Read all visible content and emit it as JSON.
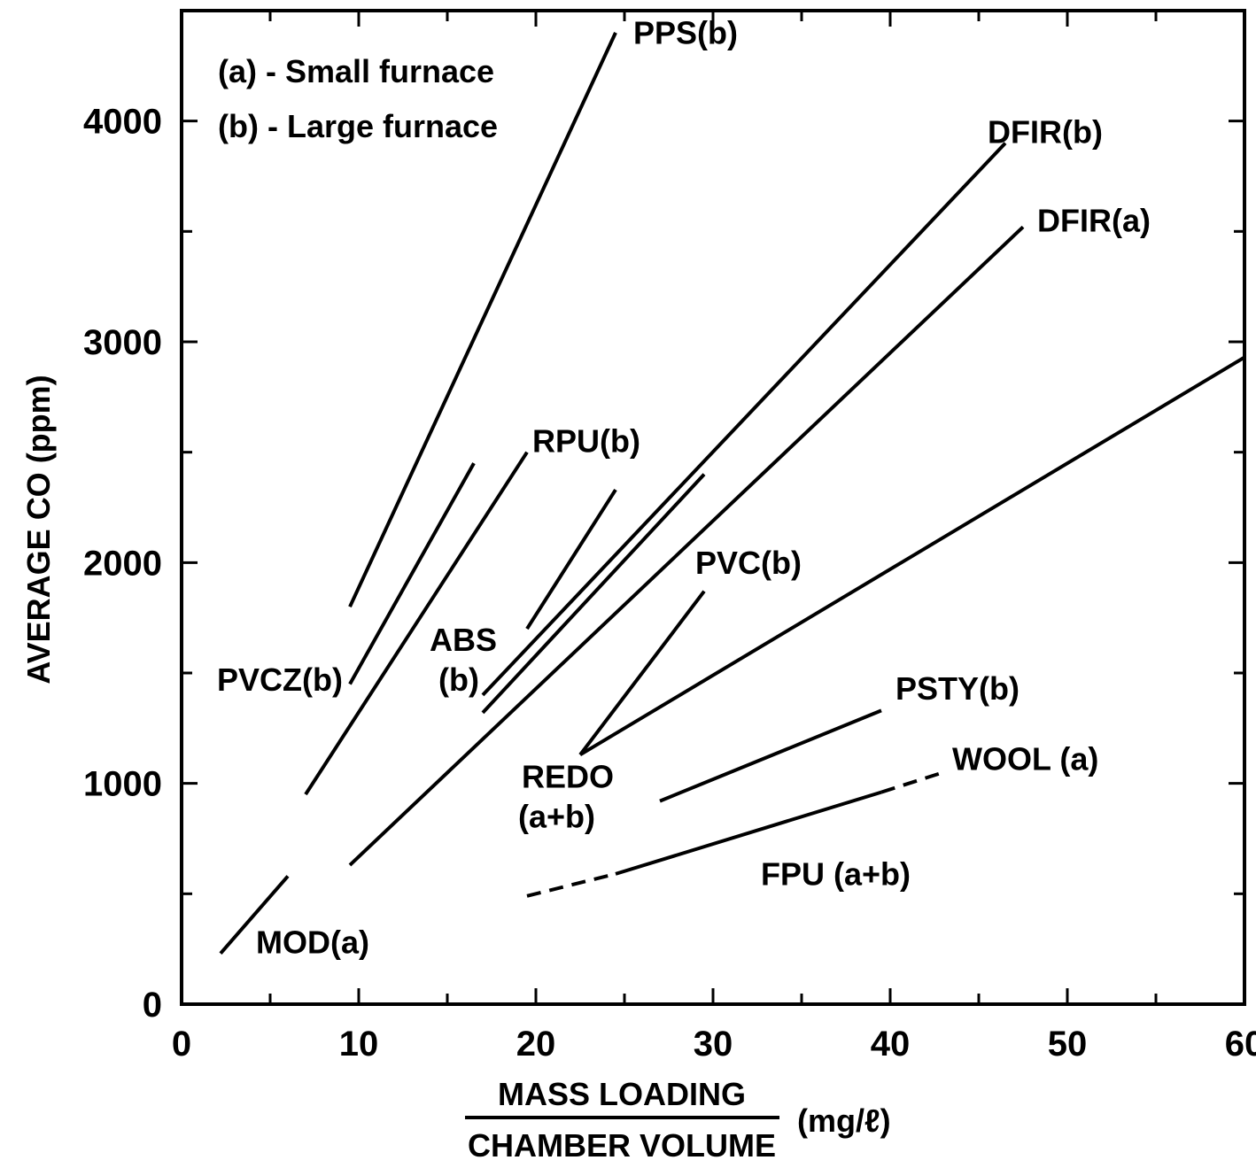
{
  "chart_data": {
    "type": "line",
    "title": "",
    "ylabel": "AVERAGE CO (ppm)",
    "xlabel_numerator": "MASS LOADING",
    "xlabel_denominator": "CHAMBER VOLUME",
    "xlabel_unit": "(mg/ℓ)",
    "xlim": [
      0,
      60
    ],
    "ylim": [
      0,
      4500
    ],
    "x_ticks": [
      0,
      10,
      20,
      30,
      40,
      50,
      60
    ],
    "x_tick_labels": [
      "0",
      "10",
      "20",
      "30",
      "40",
      "50",
      "60"
    ],
    "y_ticks": [
      0,
      1000,
      2000,
      3000,
      4000
    ],
    "y_tick_labels": [
      "0",
      "1000",
      "2000",
      "3000",
      "4000"
    ],
    "legend": [
      "(a) - Small furnace",
      "(b) - Large furnace"
    ],
    "legend_position": "top-left",
    "grid": false,
    "series": [
      {
        "name": "PPS(b)",
        "segments": [
          {
            "points": [
              [
                9.5,
                1800
              ],
              [
                24.5,
                4400
              ]
            ],
            "style": "solid"
          }
        ]
      },
      {
        "name": "PVCZ(b)",
        "segments": [
          {
            "points": [
              [
                9.5,
                1450
              ],
              [
                16.5,
                2450
              ]
            ],
            "style": "solid"
          }
        ]
      },
      {
        "name": "RPU(b)",
        "segments": [
          {
            "points": [
              [
                7,
                950
              ],
              [
                19.5,
                2500
              ]
            ],
            "style": "solid"
          }
        ]
      },
      {
        "name": "ABS",
        "segments": [
          {
            "points": [
              [
                19.5,
                1700
              ],
              [
                24.5,
                2330
              ]
            ],
            "style": "solid"
          }
        ]
      },
      {
        "name": "DFIR(b)",
        "segments": [
          {
            "points": [
              [
                17,
                1400
              ],
              [
                46.5,
                3900
              ]
            ],
            "style": "solid"
          }
        ]
      },
      {
        "name": "ABS (b)",
        "segments": [
          {
            "points": [
              [
                17,
                1320
              ],
              [
                29.5,
                2400
              ]
            ],
            "style": "solid"
          }
        ]
      },
      {
        "name": "DFIR(a)",
        "segments": [
          {
            "points": [
              [
                9.5,
                630
              ],
              [
                47.5,
                3520
              ]
            ],
            "style": "solid"
          }
        ]
      },
      {
        "name": "PVC(b)",
        "segments": [
          {
            "points": [
              [
                22.5,
                1130
              ],
              [
                29.5,
                1870
              ]
            ],
            "style": "solid"
          }
        ]
      },
      {
        "name": "REDO (a+b)",
        "segments": [
          {
            "points": [
              [
                22.5,
                1130
              ],
              [
                60,
                2930
              ]
            ],
            "style": "solid"
          }
        ]
      },
      {
        "name": "PSTY(b)",
        "segments": [
          {
            "points": [
              [
                27,
                920
              ],
              [
                39.5,
                1330
              ]
            ],
            "style": "solid"
          }
        ]
      },
      {
        "name": "FPU (a+b)",
        "segments": [
          {
            "points": [
              [
                19.5,
                490
              ],
              [
                24.5,
                590
              ]
            ],
            "style": "dashed"
          },
          {
            "points": [
              [
                24.5,
                590
              ],
              [
                39.5,
                960
              ]
            ],
            "style": "solid"
          }
        ]
      },
      {
        "name": "WOOL (a)",
        "segments": [
          {
            "points": [
              [
                39.5,
                960
              ],
              [
                43,
                1050
              ]
            ],
            "style": "dashed"
          }
        ]
      },
      {
        "name": "MOD(a)",
        "segments": [
          {
            "points": [
              [
                2.2,
                230
              ],
              [
                6,
                580
              ]
            ],
            "style": "solid"
          }
        ]
      }
    ],
    "annotations": [
      {
        "text": "PPS(b)",
        "x": 25.5,
        "y": 4350
      },
      {
        "text": "DFIR(b)",
        "x": 45.5,
        "y": 3900
      },
      {
        "text": "DFIR(a)",
        "x": 48.3,
        "y": 3500
      },
      {
        "text": "RPU(b)",
        "x": 19.8,
        "y": 2500
      },
      {
        "text": "PVC(b)",
        "x": 29.0,
        "y": 1950
      },
      {
        "text": "ABS",
        "x": 14.0,
        "y": 1600
      },
      {
        "text": "(b)",
        "x": 14.5,
        "y": 1420
      },
      {
        "text": "PVCZ(b)",
        "x": 2.0,
        "y": 1420
      },
      {
        "text": "PSTY(b)",
        "x": 40.3,
        "y": 1380
      },
      {
        "text": "REDO",
        "x": 19.2,
        "y": 980
      },
      {
        "text": "(a+b)",
        "x": 19.0,
        "y": 800
      },
      {
        "text": "WOOL (a)",
        "x": 43.5,
        "y": 1060
      },
      {
        "text": "FPU (a+b)",
        "x": 32.7,
        "y": 540
      },
      {
        "text": "MOD(a)",
        "x": 4.2,
        "y": 230
      }
    ]
  }
}
